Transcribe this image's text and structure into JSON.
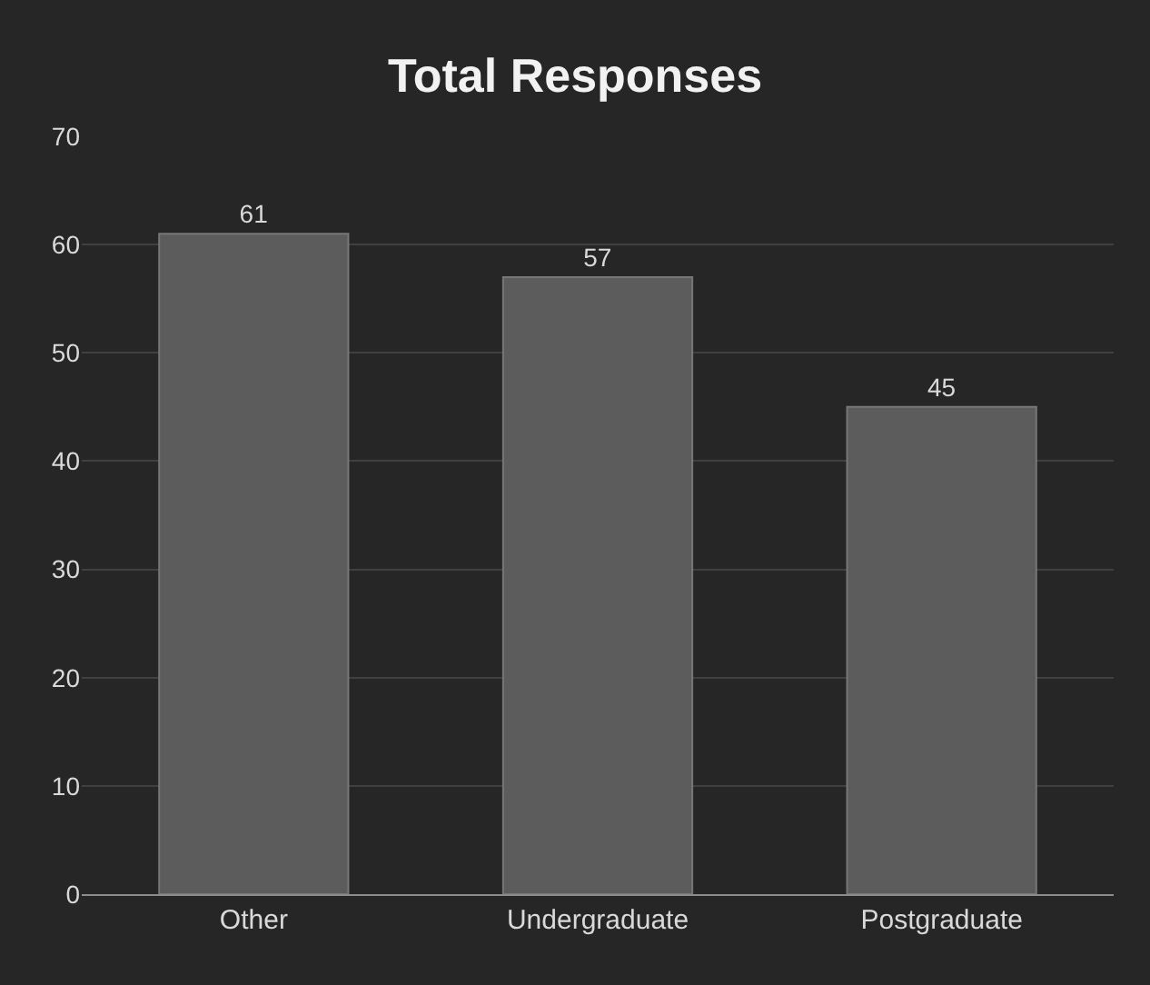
{
  "chart_data": {
    "type": "bar",
    "title": "Total Responses",
    "categories": [
      "Other",
      "Undergraduate",
      "Postgraduate"
    ],
    "values": [
      61,
      57,
      45
    ],
    "color": "#5c5c5c",
    "ylim": [
      0,
      70
    ],
    "yticks": [
      0,
      10,
      20,
      30,
      40,
      50,
      60,
      70
    ],
    "grid": "y",
    "data_labels": true
  }
}
